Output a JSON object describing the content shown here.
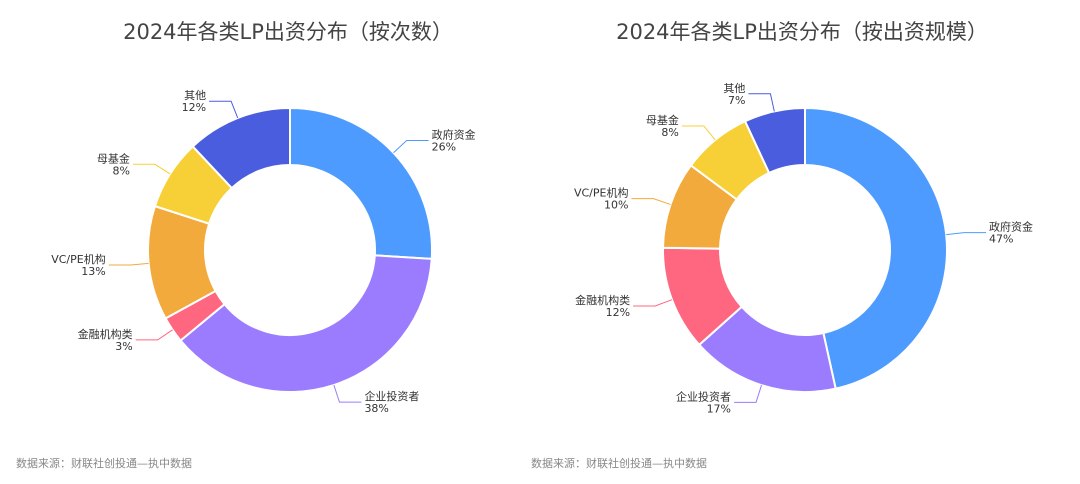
{
  "chart_data": [
    {
      "type": "pie",
      "title": "2024年各类LP出资分布（按次数）",
      "categories": [
        "政府资金",
        "企业投资者",
        "金融机构类",
        "VC/PE机构",
        "母基金",
        "其他"
      ],
      "values": [
        26,
        38,
        3,
        13,
        8,
        12
      ],
      "unit": "%",
      "labels": [
        "26%",
        "38%",
        "3%",
        "13%",
        "8%",
        "12%"
      ]
    },
    {
      "type": "pie",
      "title": "2024年各类LP出资分布（按出资规模）",
      "categories": [
        "政府资金",
        "企业投资者",
        "金融机构类",
        "VC/PE机构",
        "母基金",
        "其他"
      ],
      "values": [
        47,
        17,
        12,
        10,
        8,
        7
      ],
      "unit": "%",
      "labels": [
        "47%",
        "17%",
        "12%",
        "10%",
        "8%",
        "7%"
      ]
    }
  ],
  "colors": [
    "#4e9bff",
    "#9b7cff",
    "#ff6680",
    "#f2aa3c",
    "#f7d038",
    "#4a5ddf"
  ],
  "source": "数据来源：财联社创投通—执中数据"
}
